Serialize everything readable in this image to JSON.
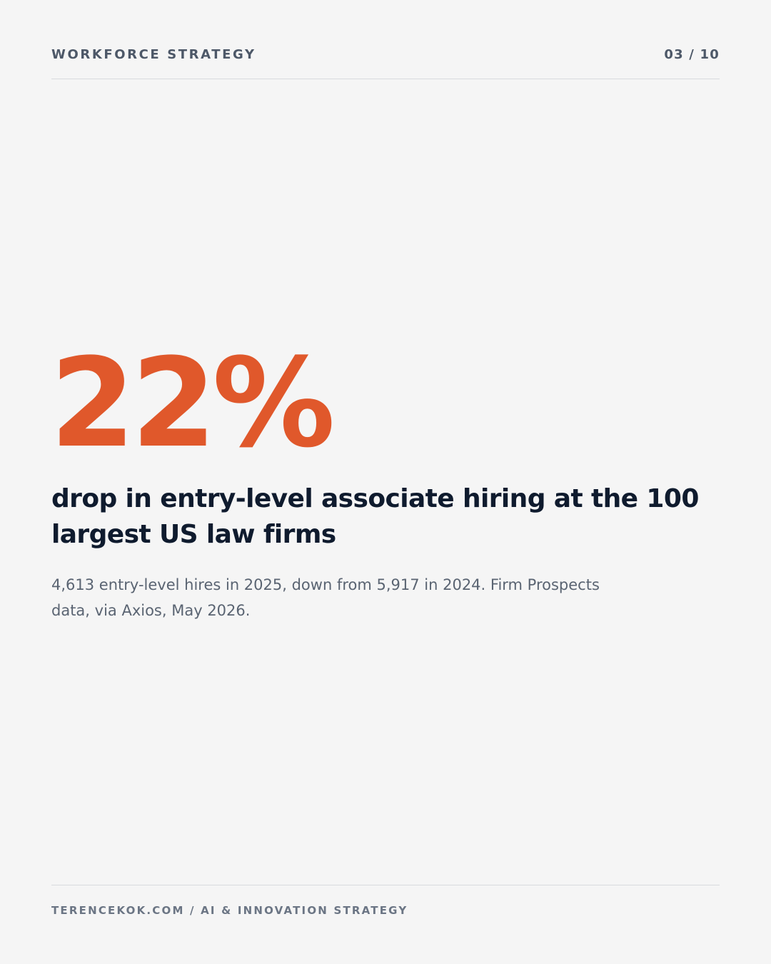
{
  "header": {
    "section_label": "WORKFORCE STRATEGY",
    "page_indicator": "03 / 10"
  },
  "stat": {
    "value": "22%",
    "headline": "drop in entry-level associate hiring at the 100 largest US law firms",
    "detail": "4,613 entry-level hires in 2025, down from 5,917 in 2024. Firm Prospects data, via Axios, May 2026."
  },
  "footer": {
    "label": "TERENCEKOK.COM / AI & INNOVATION STRATEGY"
  },
  "colors": {
    "background": "#f5f5f5",
    "accent": "#e0582b",
    "heading": "#0f1b2e",
    "body_text": "#5a6472",
    "muted": "#4d5868",
    "divider": "#d9dbde"
  }
}
